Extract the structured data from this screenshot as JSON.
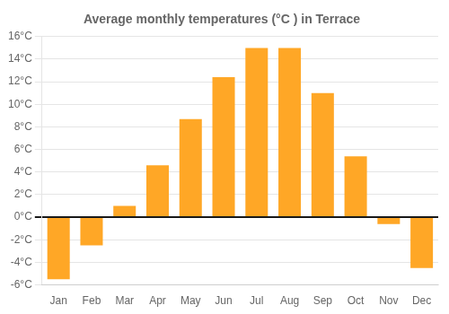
{
  "chart_data": {
    "type": "bar",
    "title": "Average monthly temperatures (°C ) in Terrace",
    "categories": [
      "Jan",
      "Feb",
      "Mar",
      "Apr",
      "May",
      "Jun",
      "Jul",
      "Aug",
      "Sep",
      "Oct",
      "Nov",
      "Dec"
    ],
    "values": [
      -5.5,
      -2.5,
      1.0,
      4.6,
      8.7,
      12.4,
      15.0,
      15.0,
      11.0,
      5.4,
      -0.6,
      -4.5
    ],
    "color": "#FFA726",
    "ylim": [
      -6,
      16
    ],
    "yticks": [
      {
        "value": -6,
        "label": "-6°C"
      },
      {
        "value": -4,
        "label": "-4°C"
      },
      {
        "value": -2,
        "label": "-2°C"
      },
      {
        "value": 0,
        "label": "0°C"
      },
      {
        "value": 2,
        "label": "2°C"
      },
      {
        "value": 4,
        "label": "4°C"
      },
      {
        "value": 6,
        "label": "6°C"
      },
      {
        "value": 8,
        "label": "8°C"
      },
      {
        "value": 10,
        "label": "10°C"
      },
      {
        "value": 12,
        "label": "12°C"
      },
      {
        "value": 14,
        "label": "14°C"
      },
      {
        "value": 16,
        "label": "16°C"
      }
    ],
    "grid": true
  }
}
